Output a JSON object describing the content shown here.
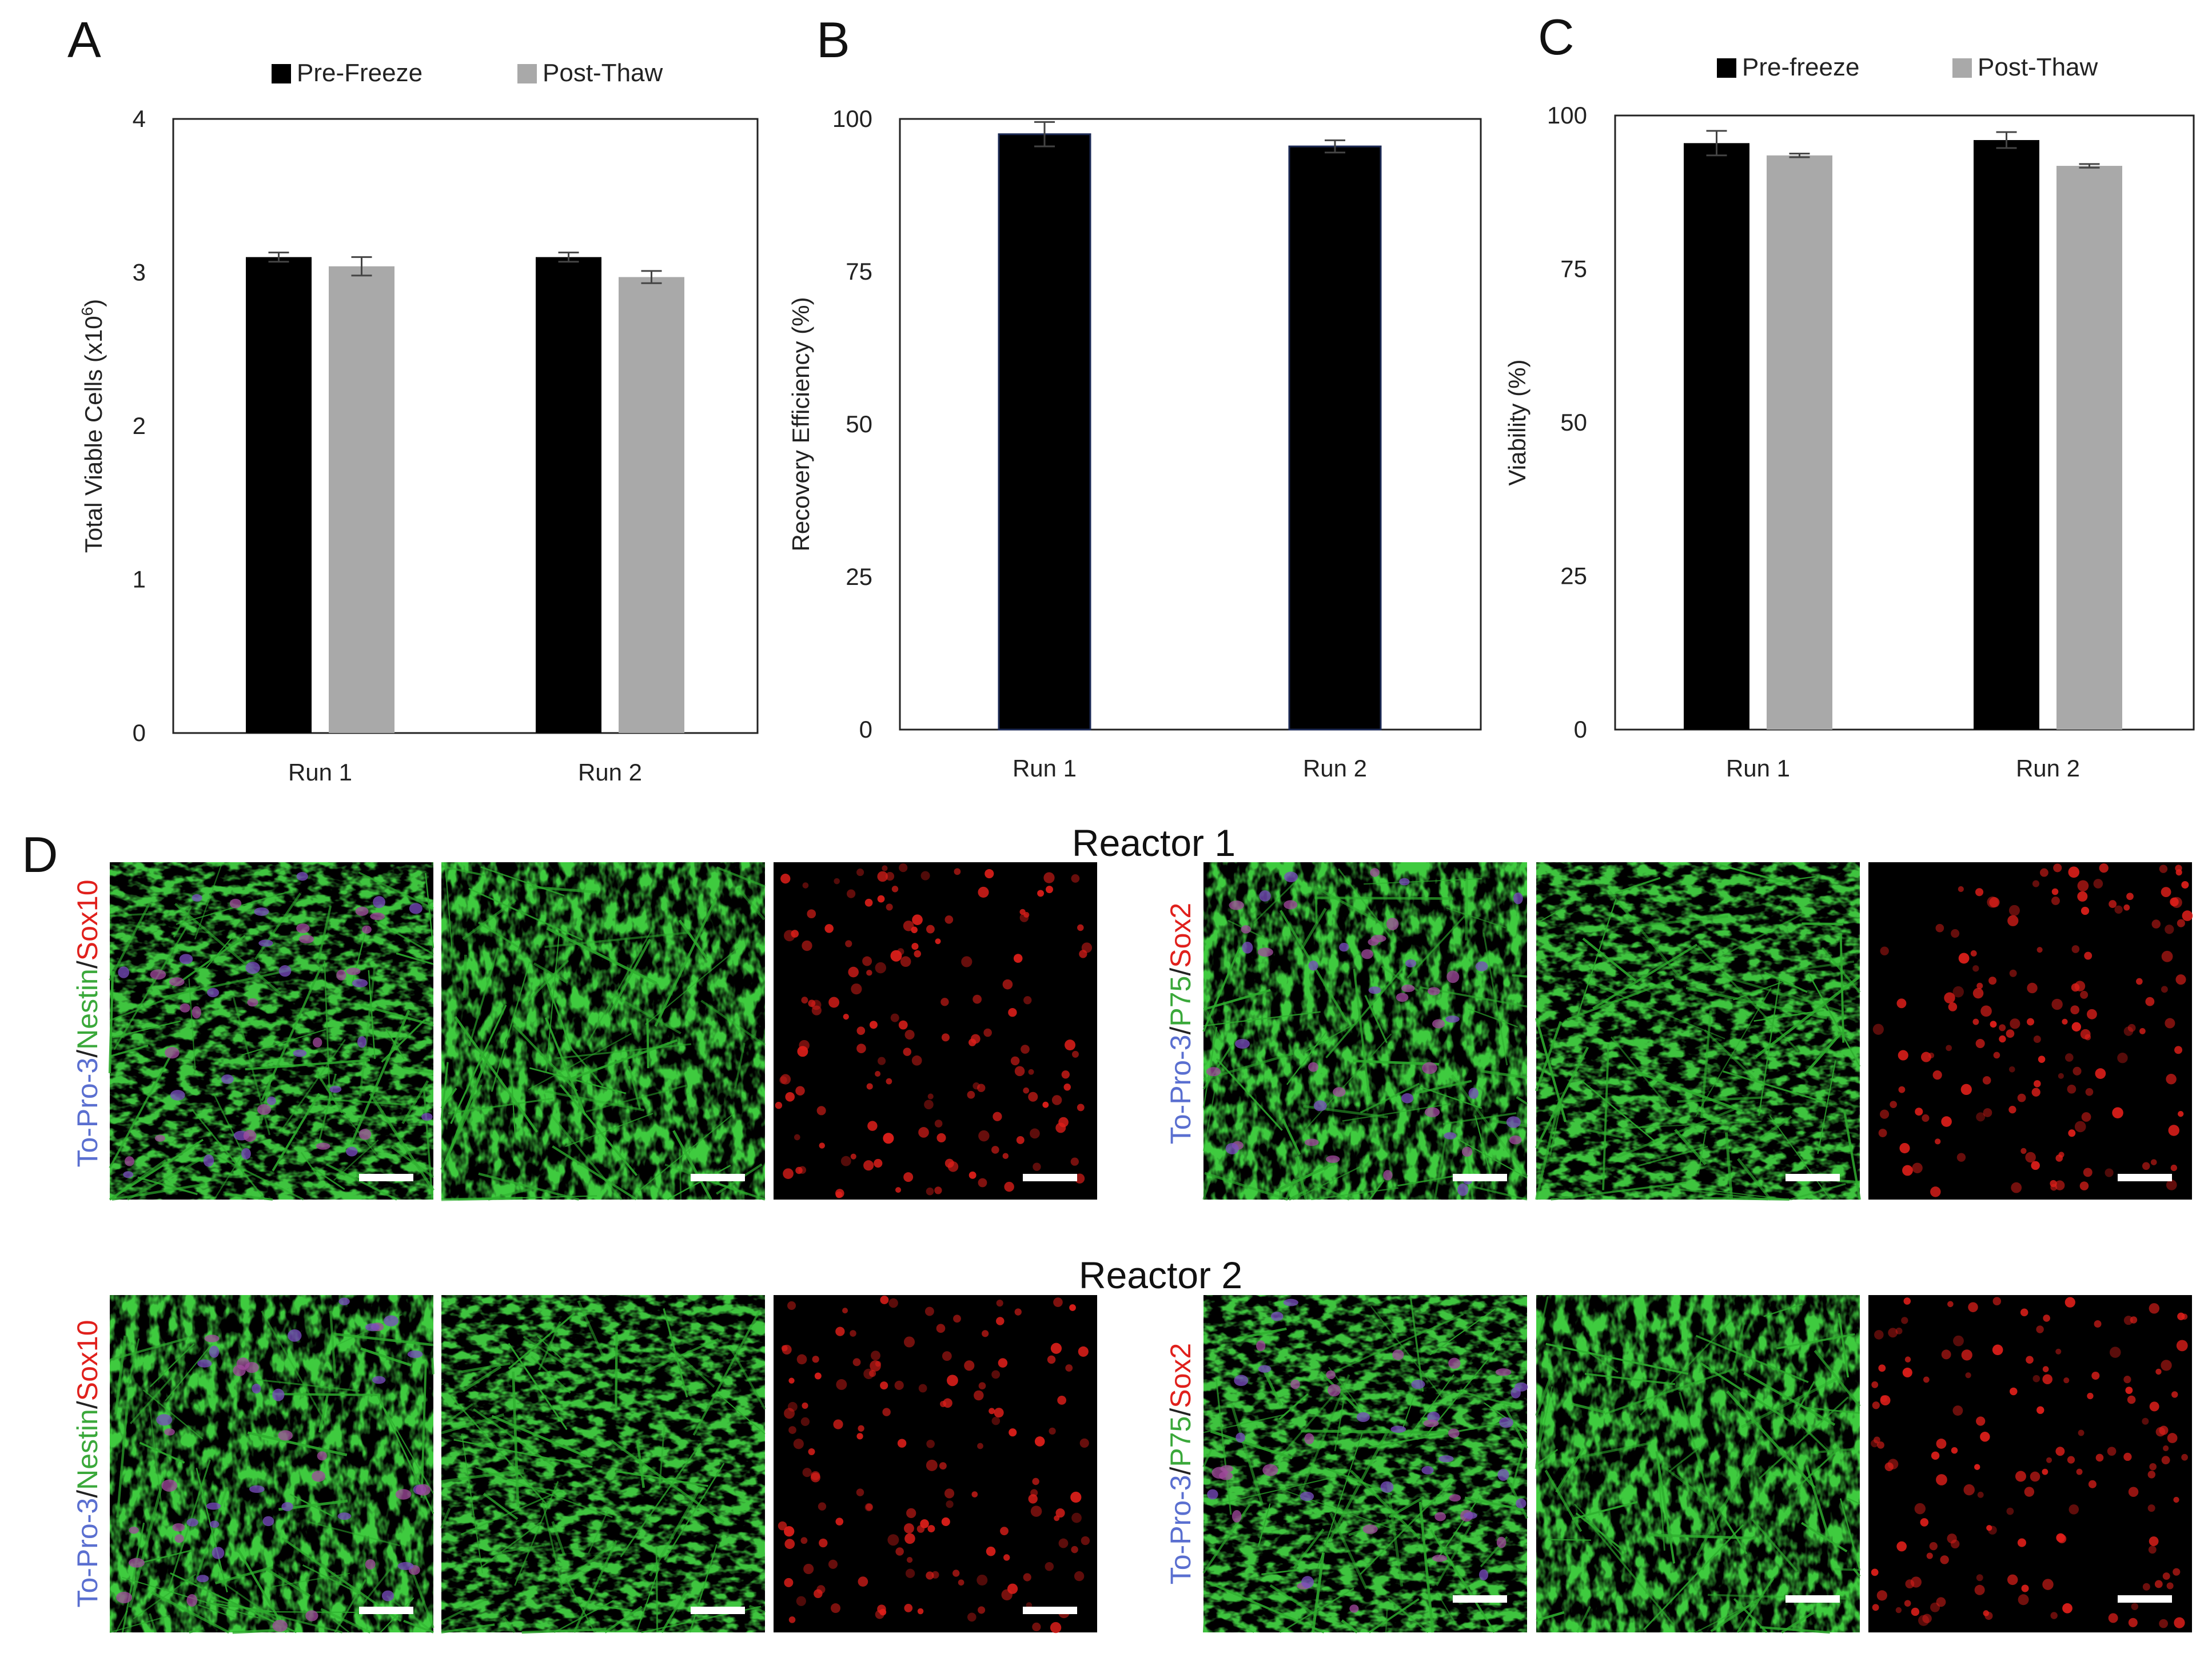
{
  "panels": {
    "a": "A",
    "b": "B",
    "c": "C",
    "d": "D"
  },
  "chart_data": [
    {
      "id": "A",
      "type": "bar",
      "categories": [
        "Run 1",
        "Run 2"
      ],
      "series": [
        {
          "name": "Pre-Freeze",
          "color": "#000000",
          "values": [
            3.1,
            3.1
          ],
          "errors": [
            0.03,
            0.03
          ]
        },
        {
          "name": "Post-Thaw",
          "color": "#a9a9a9",
          "values": [
            3.04,
            2.97
          ],
          "errors": [
            0.06,
            0.04
          ]
        }
      ],
      "ylabel_main": "Total Viable Cells (x10",
      "ylabel_sup": "6",
      "ylabel_end": ")",
      "ylim": [
        0,
        4
      ],
      "yticks": [
        "0",
        "1",
        "2",
        "3",
        "4"
      ],
      "legend": "top"
    },
    {
      "id": "B",
      "type": "bar",
      "categories": [
        "Run 1",
        "Run 2"
      ],
      "series": [
        {
          "name": "",
          "color": "#000000",
          "values": [
            97.5,
            95.5
          ],
          "errors": [
            2.0,
            1.0
          ]
        }
      ],
      "ylabel": "Recovery Efficiency (%)",
      "ylim": [
        0,
        100
      ],
      "yticks": [
        "0",
        "25",
        "50",
        "75",
        "100"
      ]
    },
    {
      "id": "C",
      "type": "bar",
      "categories": [
        "Run 1",
        "Run 2"
      ],
      "series": [
        {
          "name": "Pre-freeze",
          "color": "#000000",
          "values": [
            95.5,
            96.0
          ],
          "errors": [
            2.0,
            1.3
          ]
        },
        {
          "name": "Post-Thaw",
          "color": "#a9a9a9",
          "values": [
            93.5,
            91.8
          ],
          "errors": [
            0.3,
            0.3
          ]
        }
      ],
      "ylabel": "Viability (%)",
      "ylim": [
        0,
        100
      ],
      "yticks": [
        "0",
        "25",
        "50",
        "75",
        "100"
      ],
      "legend": "top"
    }
  ],
  "microscopy": {
    "reactor1_title": "Reactor 1",
    "reactor2_title": "Reactor 2",
    "stain_colors": {
      "blue": "#5a6fd0",
      "green": "#3aa83a",
      "red": "#e0201c"
    },
    "left_group_stain": [
      "To-Pro-3",
      "Nestin",
      "Sox10"
    ],
    "right_group_stain": [
      "To-Pro-3",
      "P75",
      "Sox2"
    ],
    "slash": "/"
  }
}
